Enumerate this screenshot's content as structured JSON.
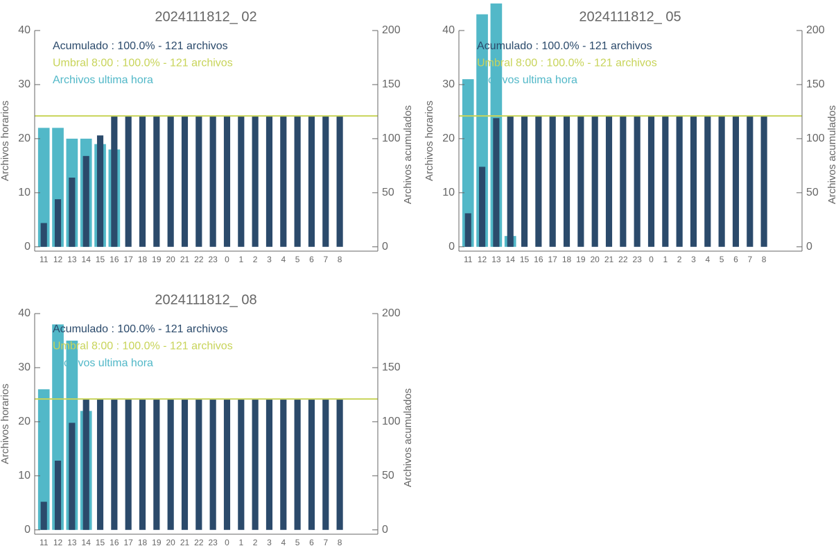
{
  "chart_data": [
    {
      "type": "bar",
      "title": "2024111812_ 02",
      "ylabel": "Archivos horarios",
      "y2label": "Archivos acumulados",
      "categories": [
        "11",
        "12",
        "13",
        "14",
        "15",
        "16",
        "17",
        "18",
        "19",
        "20",
        "21",
        "22",
        "23",
        "0",
        "1",
        "2",
        "3",
        "4",
        "5",
        "6",
        "7",
        "8"
      ],
      "series": [
        {
          "name": "Archivos ultima hora",
          "color": "#52b8c8",
          "values": [
            22,
            22,
            20,
            20,
            19,
            18,
            null,
            null,
            null,
            null,
            null,
            null,
            null,
            null,
            null,
            null,
            null,
            null,
            null,
            null,
            null,
            null
          ]
        },
        {
          "name": "Acumulado : 100.0% - 121 archivos",
          "color": "#2b4a6b",
          "axis": "y2",
          "values": [
            22,
            44,
            64,
            84,
            103,
            121,
            121,
            121,
            121,
            121,
            121,
            121,
            121,
            121,
            121,
            121,
            121,
            121,
            121,
            121,
            121,
            121
          ]
        }
      ],
      "hline": {
        "name": "Umbral 8:00 : 100.0% - 121 archivos",
        "color": "#c8d45a",
        "axis": "y2",
        "value": 121
      },
      "ylim": [
        -0.8,
        40
      ],
      "yticks": [
        0,
        10,
        20,
        30,
        40
      ],
      "y2lim": [
        -4,
        200
      ],
      "y2ticks": [
        0,
        50,
        100,
        150,
        200
      ]
    },
    {
      "type": "bar",
      "title": "2024111812_ 05",
      "ylabel": "Archivos horarios",
      "y2label": "Archivos acumulados",
      "categories": [
        "11",
        "12",
        "13",
        "14",
        "15",
        "16",
        "17",
        "18",
        "19",
        "20",
        "21",
        "22",
        "23",
        "0",
        "1",
        "2",
        "3",
        "4",
        "5",
        "6",
        "7",
        "8"
      ],
      "series": [
        {
          "name": "Archivos ultima hora",
          "color": "#52b8c8",
          "values": [
            31,
            43,
            45,
            2,
            null,
            null,
            null,
            null,
            null,
            null,
            null,
            null,
            null,
            null,
            null,
            null,
            null,
            null,
            null,
            null,
            null,
            null
          ]
        },
        {
          "name": "Acumulado : 100.0% - 121 archivos",
          "color": "#2b4a6b",
          "axis": "y2",
          "values": [
            31,
            74,
            119,
            121,
            121,
            121,
            121,
            121,
            121,
            121,
            121,
            121,
            121,
            121,
            121,
            121,
            121,
            121,
            121,
            121,
            121,
            121
          ]
        }
      ],
      "hline": {
        "name": "Umbral 8:00 : 100.0% - 121 archivos",
        "color": "#c8d45a",
        "axis": "y2",
        "value": 121
      },
      "ylim": [
        -0.8,
        40
      ],
      "yticks": [
        0,
        10,
        20,
        30,
        40
      ],
      "y2lim": [
        -4,
        200
      ],
      "y2ticks": [
        0,
        50,
        100,
        150,
        200
      ]
    },
    {
      "type": "bar",
      "title": "2024111812_ 08",
      "ylabel": "Archivos horarios",
      "y2label": "Archivos acumulados",
      "categories": [
        "11",
        "12",
        "13",
        "14",
        "15",
        "16",
        "17",
        "18",
        "19",
        "20",
        "21",
        "22",
        "23",
        "0",
        "1",
        "2",
        "3",
        "4",
        "5",
        "6",
        "7",
        "8"
      ],
      "series": [
        {
          "name": "Archivos ultima hora",
          "color": "#52b8c8",
          "values": [
            26,
            38,
            35,
            22,
            null,
            null,
            null,
            null,
            null,
            null,
            null,
            null,
            null,
            null,
            null,
            null,
            null,
            null,
            null,
            null,
            null,
            null
          ]
        },
        {
          "name": "Acumulado : 100.0% - 121 archivos",
          "color": "#2b4a6b",
          "axis": "y2",
          "values": [
            26,
            64,
            99,
            121,
            121,
            121,
            121,
            121,
            121,
            121,
            121,
            121,
            121,
            121,
            121,
            121,
            121,
            121,
            121,
            121,
            121,
            121
          ]
        }
      ],
      "hline": {
        "name": "Umbral 8:00 : 100.0% - 121 archivos",
        "color": "#c8d45a",
        "axis": "y2",
        "value": 121
      },
      "ylim": [
        -0.8,
        40
      ],
      "yticks": [
        0,
        10,
        20,
        30,
        40
      ],
      "y2lim": [
        -4,
        200
      ],
      "y2ticks": [
        0,
        50,
        100,
        150,
        200
      ]
    }
  ]
}
